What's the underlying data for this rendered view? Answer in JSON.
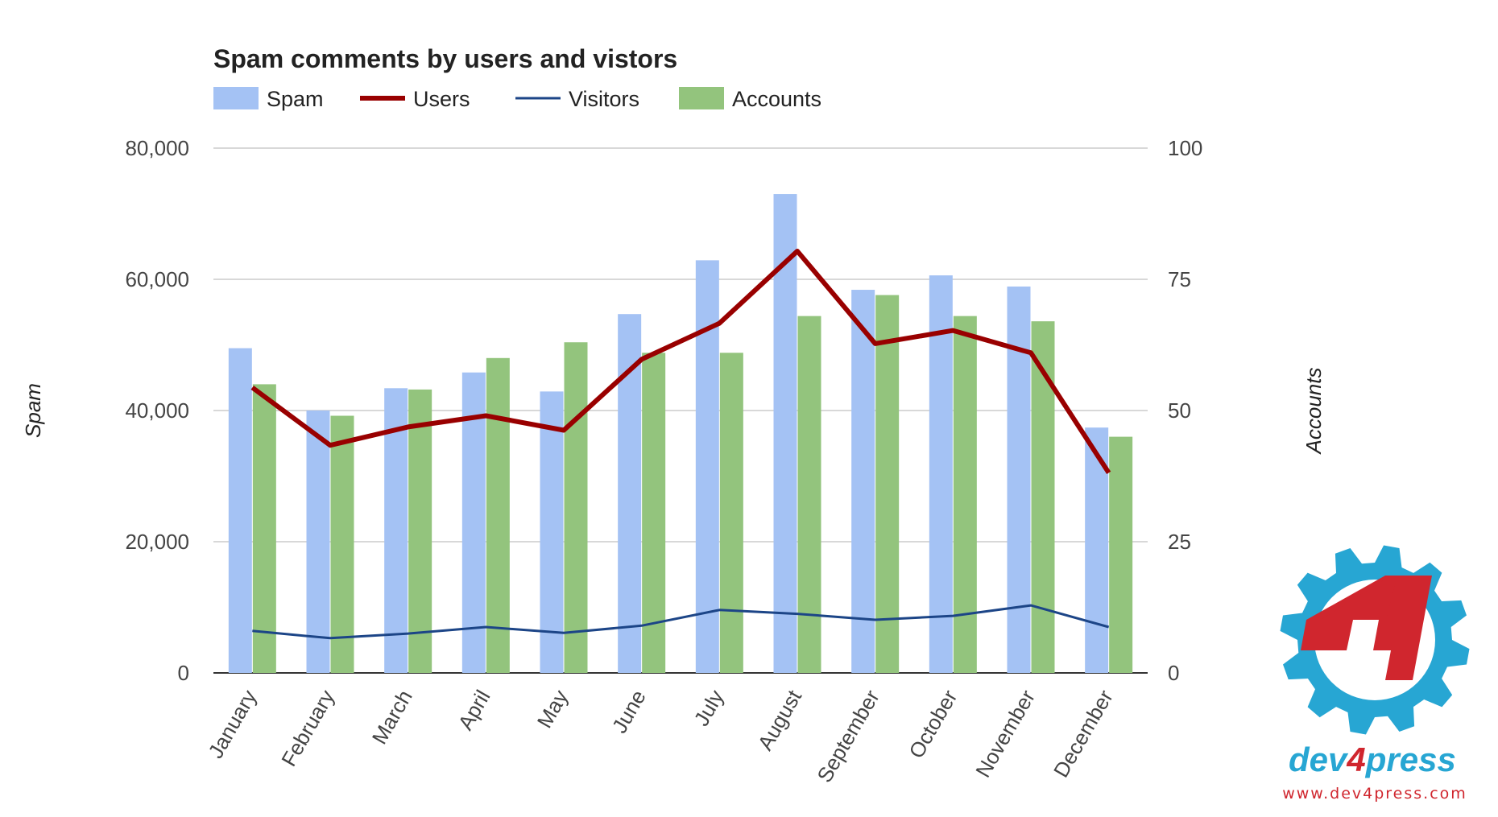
{
  "chart_data": {
    "type": "bar",
    "title": "Spam comments by users and vistors",
    "categories": [
      "January",
      "February",
      "March",
      "April",
      "May",
      "June",
      "July",
      "August",
      "September",
      "October",
      "November",
      "December"
    ],
    "series": [
      {
        "name": "Spam",
        "type": "bar",
        "axis": "left",
        "color": "#a4c2f4",
        "values": [
          49500,
          40000,
          43400,
          45800,
          42900,
          54700,
          62900,
          73000,
          58400,
          60600,
          58900,
          37400
        ]
      },
      {
        "name": "Accounts",
        "type": "bar",
        "axis": "right",
        "color": "#93c47d",
        "values": [
          55,
          49,
          54,
          60,
          63,
          61,
          61,
          68,
          72,
          68,
          67,
          45
        ]
      },
      {
        "name": "Users",
        "type": "line",
        "axis": "left",
        "color": "#990000",
        "values": [
          43500,
          34700,
          37500,
          39200,
          37000,
          47800,
          53300,
          64300,
          50200,
          52200,
          48800,
          30500
        ]
      },
      {
        "name": "Visitors",
        "type": "line",
        "axis": "left",
        "color": "#1c4587",
        "values": [
          6400,
          5300,
          6000,
          7000,
          6100,
          7200,
          9600,
          9000,
          8100,
          8700,
          10300,
          7000
        ]
      }
    ],
    "legend_order": [
      "Spam",
      "Users",
      "Visitors",
      "Accounts"
    ],
    "left_axis": {
      "label": "Spam",
      "min": 0,
      "max": 80000,
      "ticks": [
        "0",
        "20,000",
        "40,000",
        "60,000",
        "80,000"
      ]
    },
    "right_axis": {
      "label": "Accounts",
      "min": 0,
      "max": 100,
      "ticks": [
        "0",
        "25",
        "50",
        "75",
        "100"
      ]
    },
    "grid": true,
    "legend_position": "top-left"
  },
  "logo": {
    "wordmark_prefix": "dev",
    "wordmark_number": "4",
    "wordmark_suffix": "press",
    "url": "www.dev4press.com",
    "gear_color": "#27a6d3",
    "accent_color": "#d0262e"
  }
}
